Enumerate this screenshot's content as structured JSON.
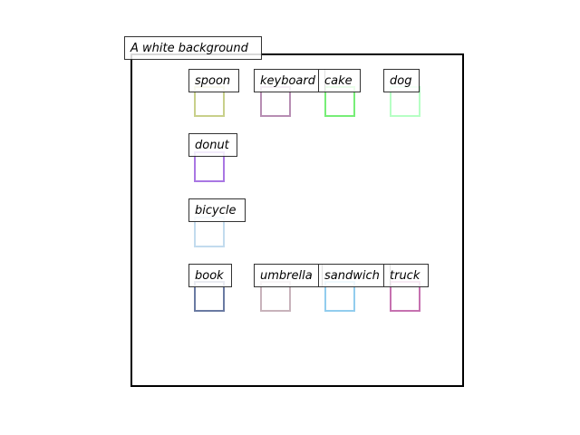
{
  "scene": {
    "caption": "A white background",
    "objects": [
      {
        "label": "spoon",
        "color": "#c8d08a"
      },
      {
        "label": "keyboard",
        "color": "#b78db3"
      },
      {
        "label": "cake",
        "color": "#77ee77"
      },
      {
        "label": "dog",
        "color": "#b6ffc4"
      },
      {
        "label": "donut",
        "color": "#a977e3"
      },
      {
        "label": "bicycle",
        "color": "#c2dbee"
      },
      {
        "label": "book",
        "color": "#6a7aa2"
      },
      {
        "label": "umbrella",
        "color": "#c8b3bb"
      },
      {
        "label": "sandwich",
        "color": "#92cdee"
      },
      {
        "label": "truck",
        "color": "#c671b0"
      }
    ]
  }
}
